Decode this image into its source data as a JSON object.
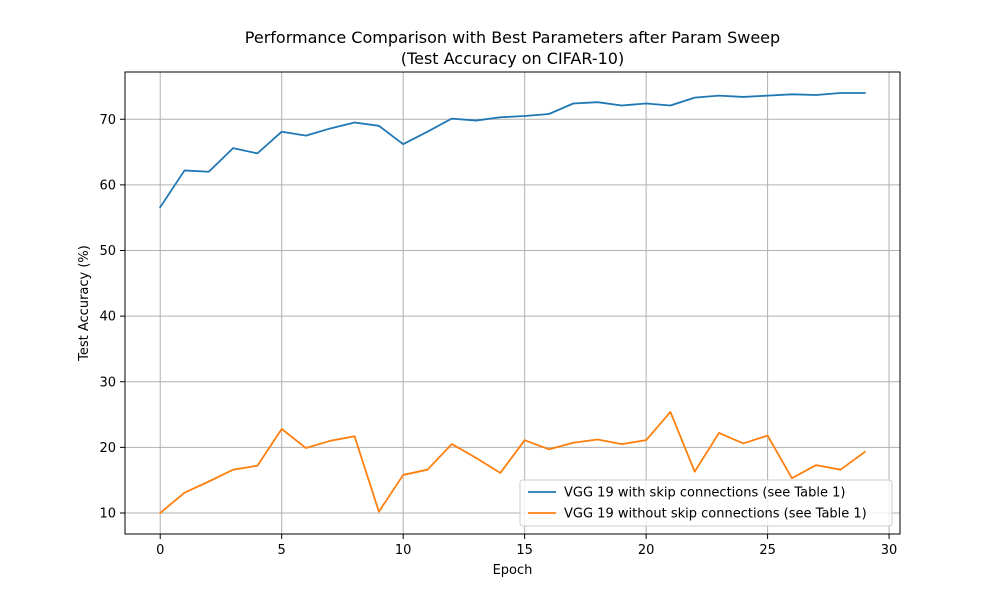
{
  "chart_data": {
    "type": "line",
    "title": "Performance Comparison with Best Parameters after Param Sweep",
    "subtitle": "(Test Accuracy on CIFAR-10)",
    "xlabel": "Epoch",
    "ylabel": "Test Accuracy (%)",
    "xlim": [
      -1.45,
      30.45
    ],
    "ylim": [
      6.8,
      77.2
    ],
    "xticks": [
      0,
      5,
      10,
      15,
      20,
      25,
      30
    ],
    "yticks": [
      10,
      20,
      30,
      40,
      50,
      60,
      70
    ],
    "grid": true,
    "legend_position": "lower-right",
    "x": [
      0,
      1,
      2,
      3,
      4,
      5,
      6,
      7,
      8,
      9,
      10,
      11,
      12,
      13,
      14,
      15,
      16,
      17,
      18,
      19,
      20,
      21,
      22,
      23,
      24,
      25,
      26,
      27,
      28,
      29
    ],
    "series": [
      {
        "name": "VGG 19 with skip connections (see Table 1)",
        "color": "#1f77b4",
        "values": [
          56.6,
          62.2,
          62.0,
          65.6,
          64.8,
          68.1,
          67.5,
          68.6,
          69.5,
          69.0,
          66.2,
          68.1,
          70.1,
          69.8,
          70.3,
          70.5,
          70.8,
          72.4,
          72.6,
          72.1,
          72.4,
          72.1,
          73.3,
          73.6,
          73.4,
          73.6,
          73.8,
          73.7,
          74.0,
          74.0
        ]
      },
      {
        "name": "VGG 19 without skip connections (see Table 1)",
        "color": "#ff7f0e",
        "values": [
          10.0,
          13.1,
          14.8,
          16.6,
          17.2,
          22.8,
          19.9,
          21.0,
          21.7,
          10.2,
          15.8,
          16.6,
          20.5,
          18.4,
          16.1,
          21.1,
          19.7,
          20.7,
          21.2,
          20.5,
          21.1,
          25.4,
          16.3,
          22.2,
          20.6,
          21.8,
          15.3,
          17.3,
          16.6,
          19.3
        ]
      }
    ]
  }
}
